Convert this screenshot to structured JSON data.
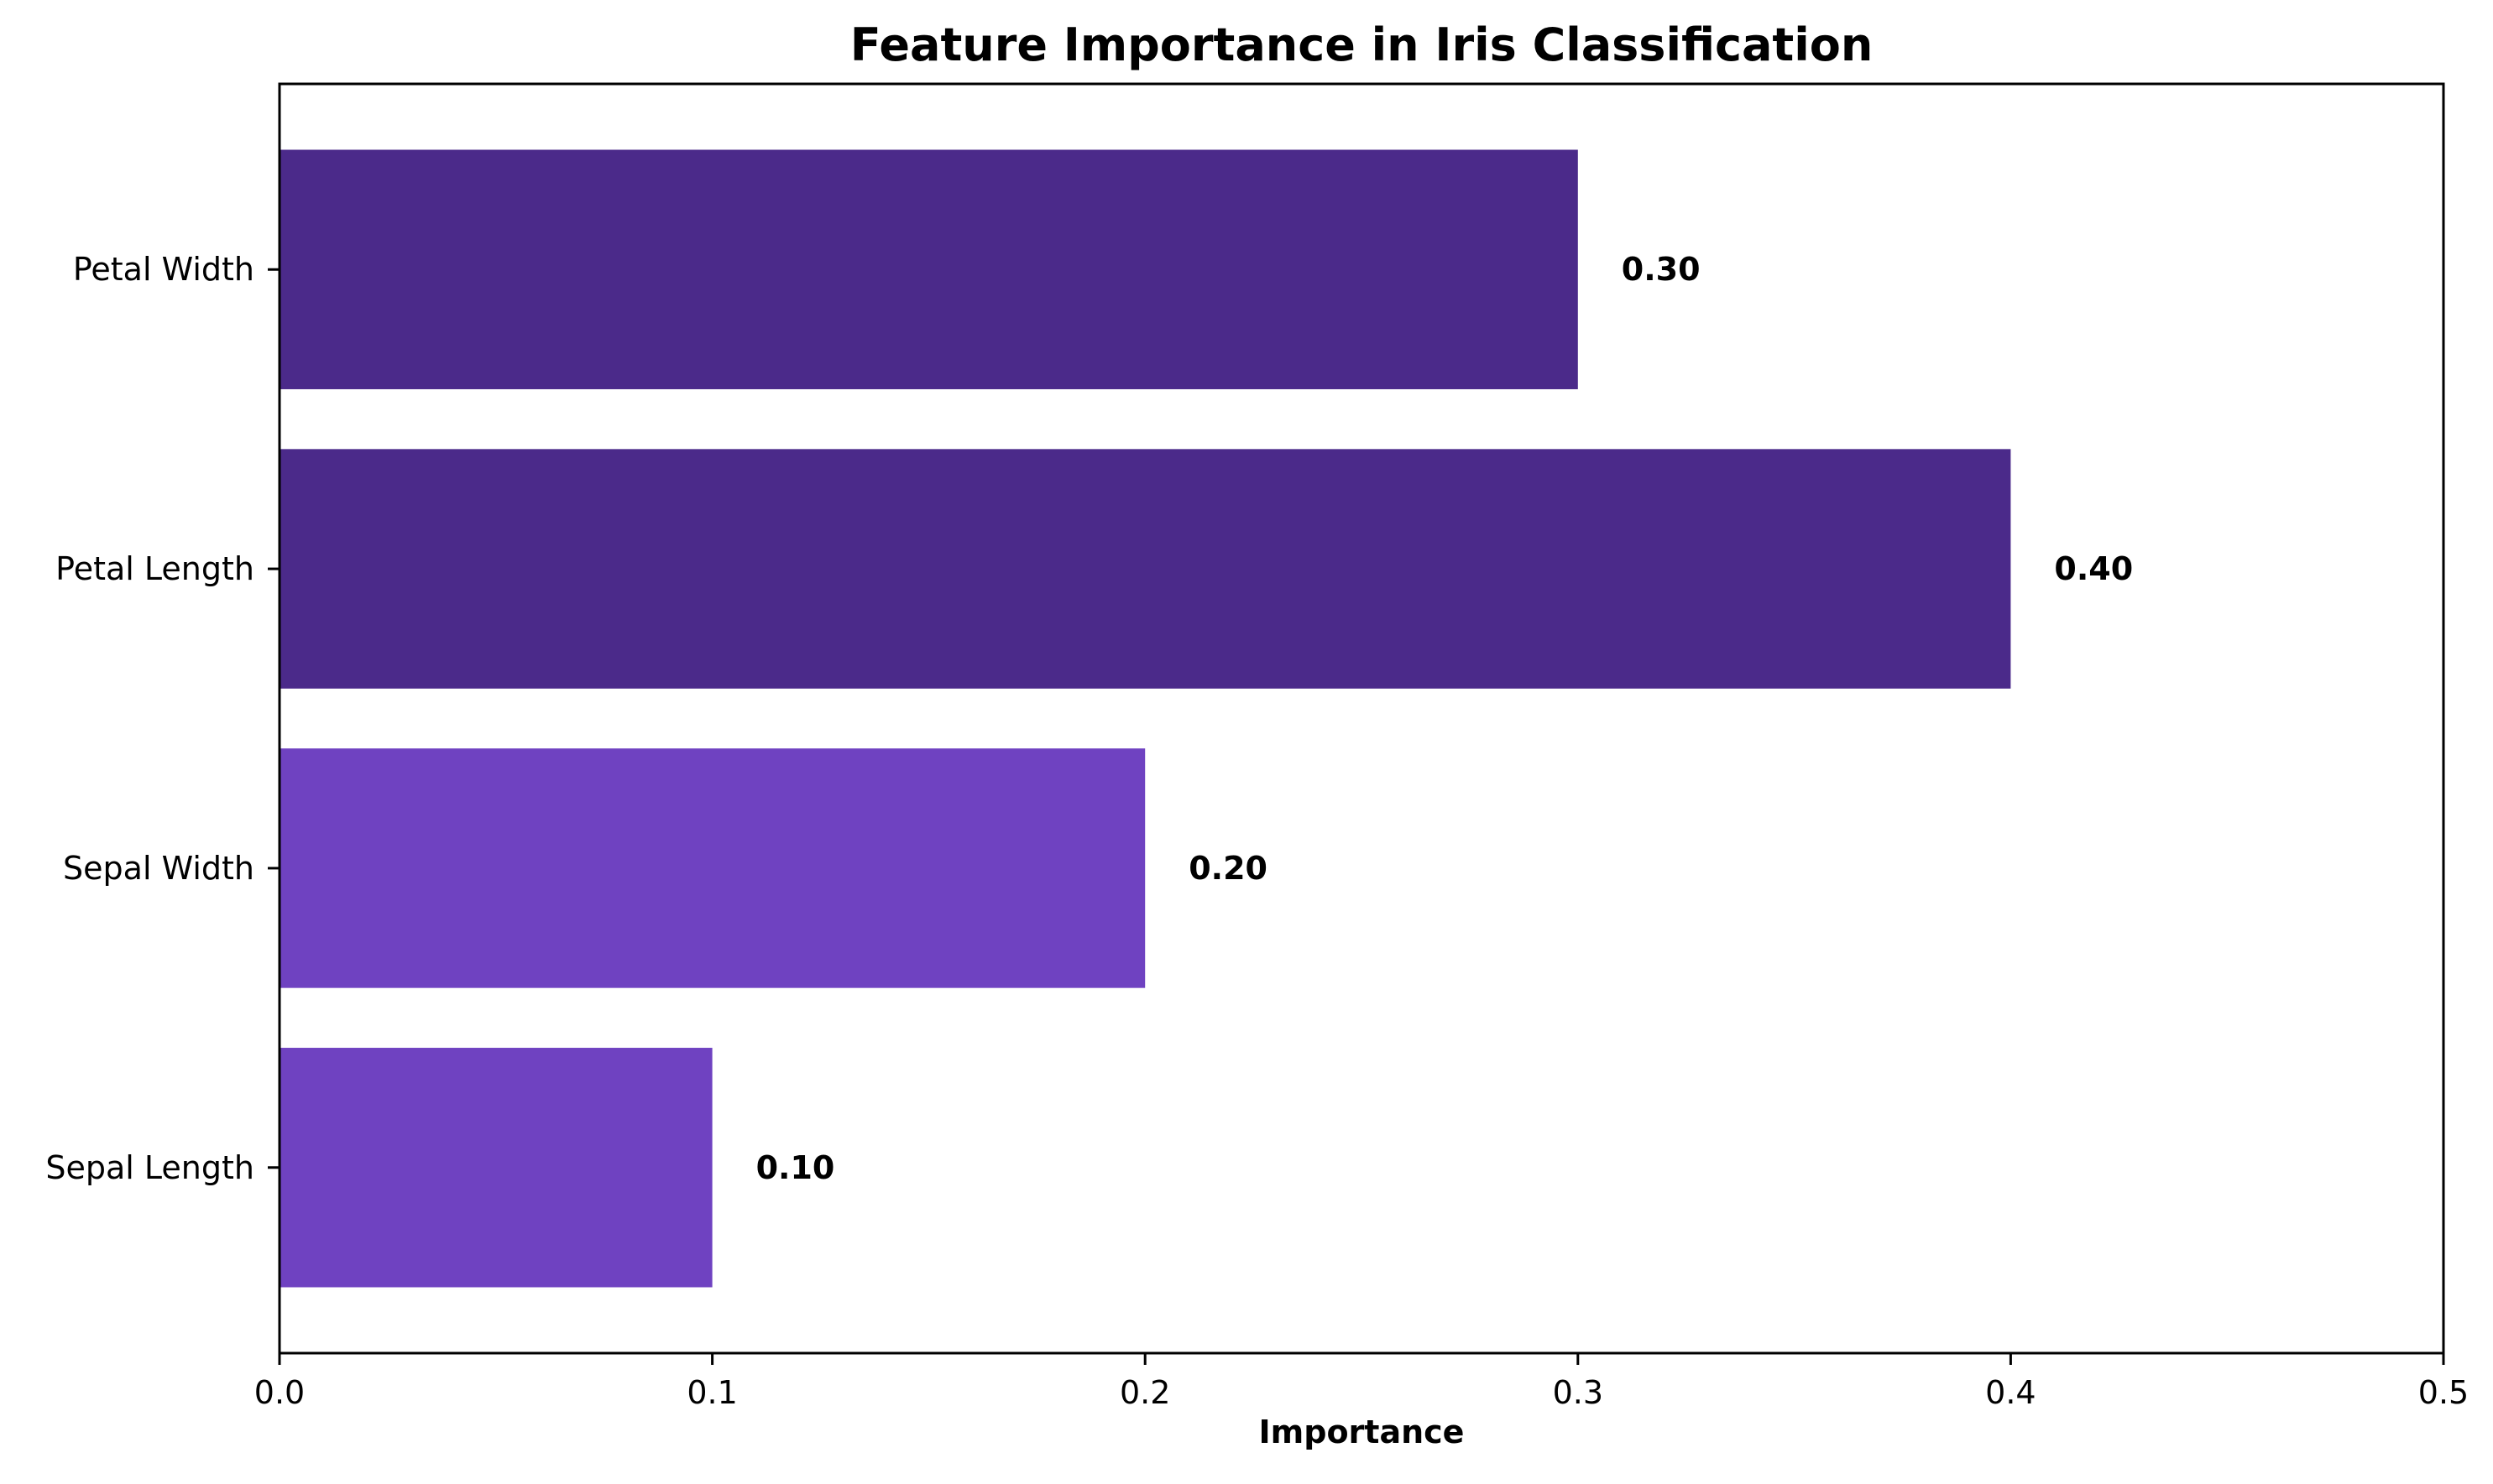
{
  "chart_data": {
    "type": "bar",
    "orientation": "horizontal",
    "title": "Feature Importance in Iris Classification",
    "xlabel": "Importance",
    "ylabel": "",
    "xlim": [
      0,
      0.5
    ],
    "xticks": [
      0.0,
      0.1,
      0.2,
      0.3,
      0.4,
      0.5
    ],
    "xtick_labels": [
      "0.0",
      "0.1",
      "0.2",
      "0.3",
      "0.4",
      "0.5"
    ],
    "categories": [
      "Sepal Length",
      "Sepal Width",
      "Petal Length",
      "Petal Width"
    ],
    "values": [
      0.1,
      0.2,
      0.4,
      0.3
    ],
    "value_labels": [
      "0.10",
      "0.20",
      "0.40",
      "0.30"
    ],
    "bar_colors": [
      "#6f42c1",
      "#6f42c1",
      "#4b2a8a",
      "#4b2a8a"
    ],
    "grid": false,
    "legend": "none"
  }
}
